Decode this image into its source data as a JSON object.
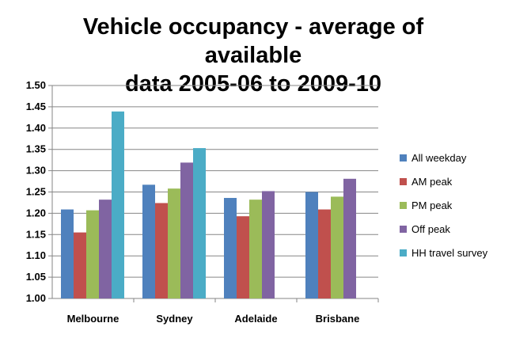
{
  "chart_data": {
    "type": "bar",
    "title_line1": "Vehicle occupancy - average of available",
    "title_line2": "data 2005-06  to 2009-10",
    "categories": [
      "Melbourne",
      "Sydney",
      "Adelaide",
      "Brisbane"
    ],
    "series": [
      {
        "name": "All weekday",
        "color": "#4f81bd",
        "values": [
          1.209,
          1.267,
          1.236,
          1.25
        ]
      },
      {
        "name": "AM peak",
        "color": "#c0504d",
        "values": [
          1.155,
          1.224,
          1.193,
          1.209
        ]
      },
      {
        "name": "PM peak",
        "color": "#9bbb59",
        "values": [
          1.207,
          1.258,
          1.232,
          1.239
        ]
      },
      {
        "name": "Off peak",
        "color": "#8064a2",
        "values": [
          1.232,
          1.319,
          1.252,
          1.281
        ]
      },
      {
        "name": "HH travel survey",
        "color": "#4bacc6",
        "values": [
          1.439,
          1.353,
          null,
          null
        ]
      }
    ],
    "ylim": [
      1.0,
      1.5
    ],
    "yticks": [
      "1.00",
      "1.05",
      "1.10",
      "1.15",
      "1.20",
      "1.25",
      "1.30",
      "1.35",
      "1.40",
      "1.45",
      "1.50"
    ],
    "grid": true,
    "legend": "right",
    "xlabel": "",
    "ylabel": ""
  }
}
